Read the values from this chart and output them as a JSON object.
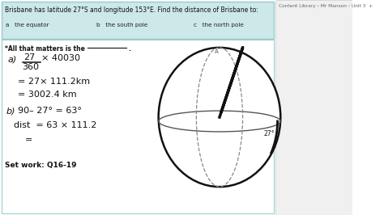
{
  "bg_color": "#ffffff",
  "question_box_color": "#cce8e8",
  "question_box_border": "#99cccc",
  "question_text": "Brisbane has latitude 27°S and longitude 153°E. Find the distance of Brisbane to:",
  "part_a": "a   the equator",
  "part_b": "b   the south pole",
  "part_c": "c   the north pole",
  "header_note": "*All that matters is the _________.",
  "set_work": "Set work: Q16-19",
  "sidebar_text": "Content Library › Mr Manson › Unit 3  +",
  "angle_label": "27°"
}
